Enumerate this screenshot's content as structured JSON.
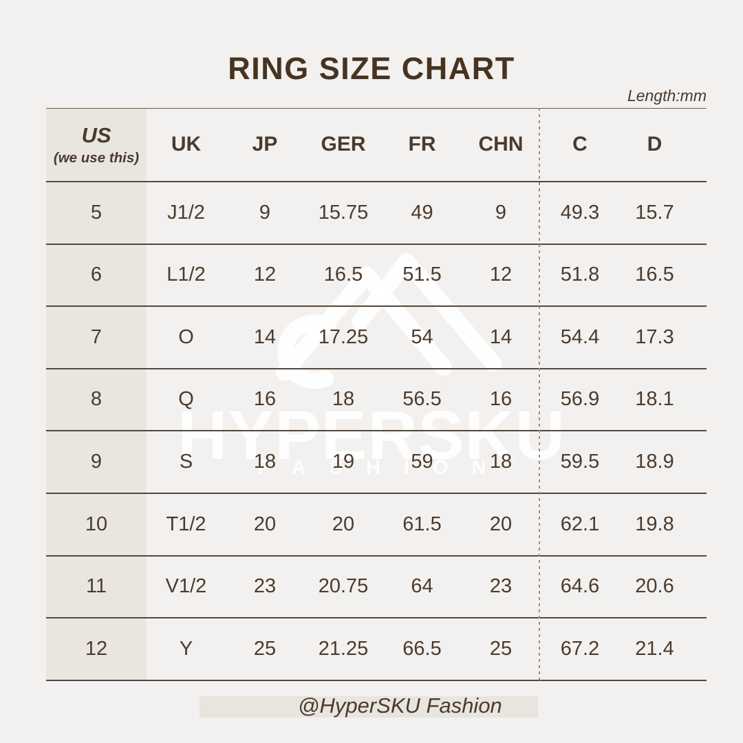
{
  "page": {
    "background": "#f2f1ef",
    "watermark": {
      "brand": "HYPERSKU",
      "sub": "FASHION"
    },
    "footer": {
      "handle": "@HyperSKU Fashion"
    }
  },
  "colors": {
    "title": "#47331f",
    "body_text": "#4c3a2c",
    "row_line": "#564639",
    "dashed_divider": "#9a8c7d",
    "shaded_column": "#e9e6e0",
    "footer_band": "#e8e5df",
    "watermark": "#ffffff"
  },
  "chart_data": {
    "type": "table",
    "title": "RING SIZE CHART",
    "unit_label": "Length:mm",
    "columns": [
      {
        "key": "us",
        "label": "US",
        "note": "(we use this)"
      },
      {
        "key": "uk",
        "label": "UK"
      },
      {
        "key": "jp",
        "label": "JP"
      },
      {
        "key": "ger",
        "label": "GER"
      },
      {
        "key": "fr",
        "label": "FR"
      },
      {
        "key": "chn",
        "label": "CHN"
      },
      {
        "key": "c",
        "label": "C"
      },
      {
        "key": "d",
        "label": "D"
      }
    ],
    "rows": [
      [
        "5",
        "J1/2",
        "9",
        "15.75",
        "49",
        "9",
        "49.3",
        "15.7"
      ],
      [
        "6",
        "L1/2",
        "12",
        "16.5",
        "51.5",
        "12",
        "51.8",
        "16.5"
      ],
      [
        "7",
        "O",
        "14",
        "17.25",
        "54",
        "14",
        "54.4",
        "17.3"
      ],
      [
        "8",
        "Q",
        "16",
        "18",
        "56.5",
        "16",
        "56.9",
        "18.1"
      ],
      [
        "9",
        "S",
        "18",
        "19",
        "59",
        "18",
        "59.5",
        "18.9"
      ],
      [
        "10",
        "T1/2",
        "20",
        "20",
        "61.5",
        "20",
        "62.1",
        "19.8"
      ],
      [
        "11",
        "V1/2",
        "23",
        "20.75",
        "64",
        "23",
        "64.6",
        "20.6"
      ],
      [
        "12",
        "Y",
        "25",
        "21.25",
        "66.5",
        "25",
        "67.2",
        "21.4"
      ]
    ]
  }
}
